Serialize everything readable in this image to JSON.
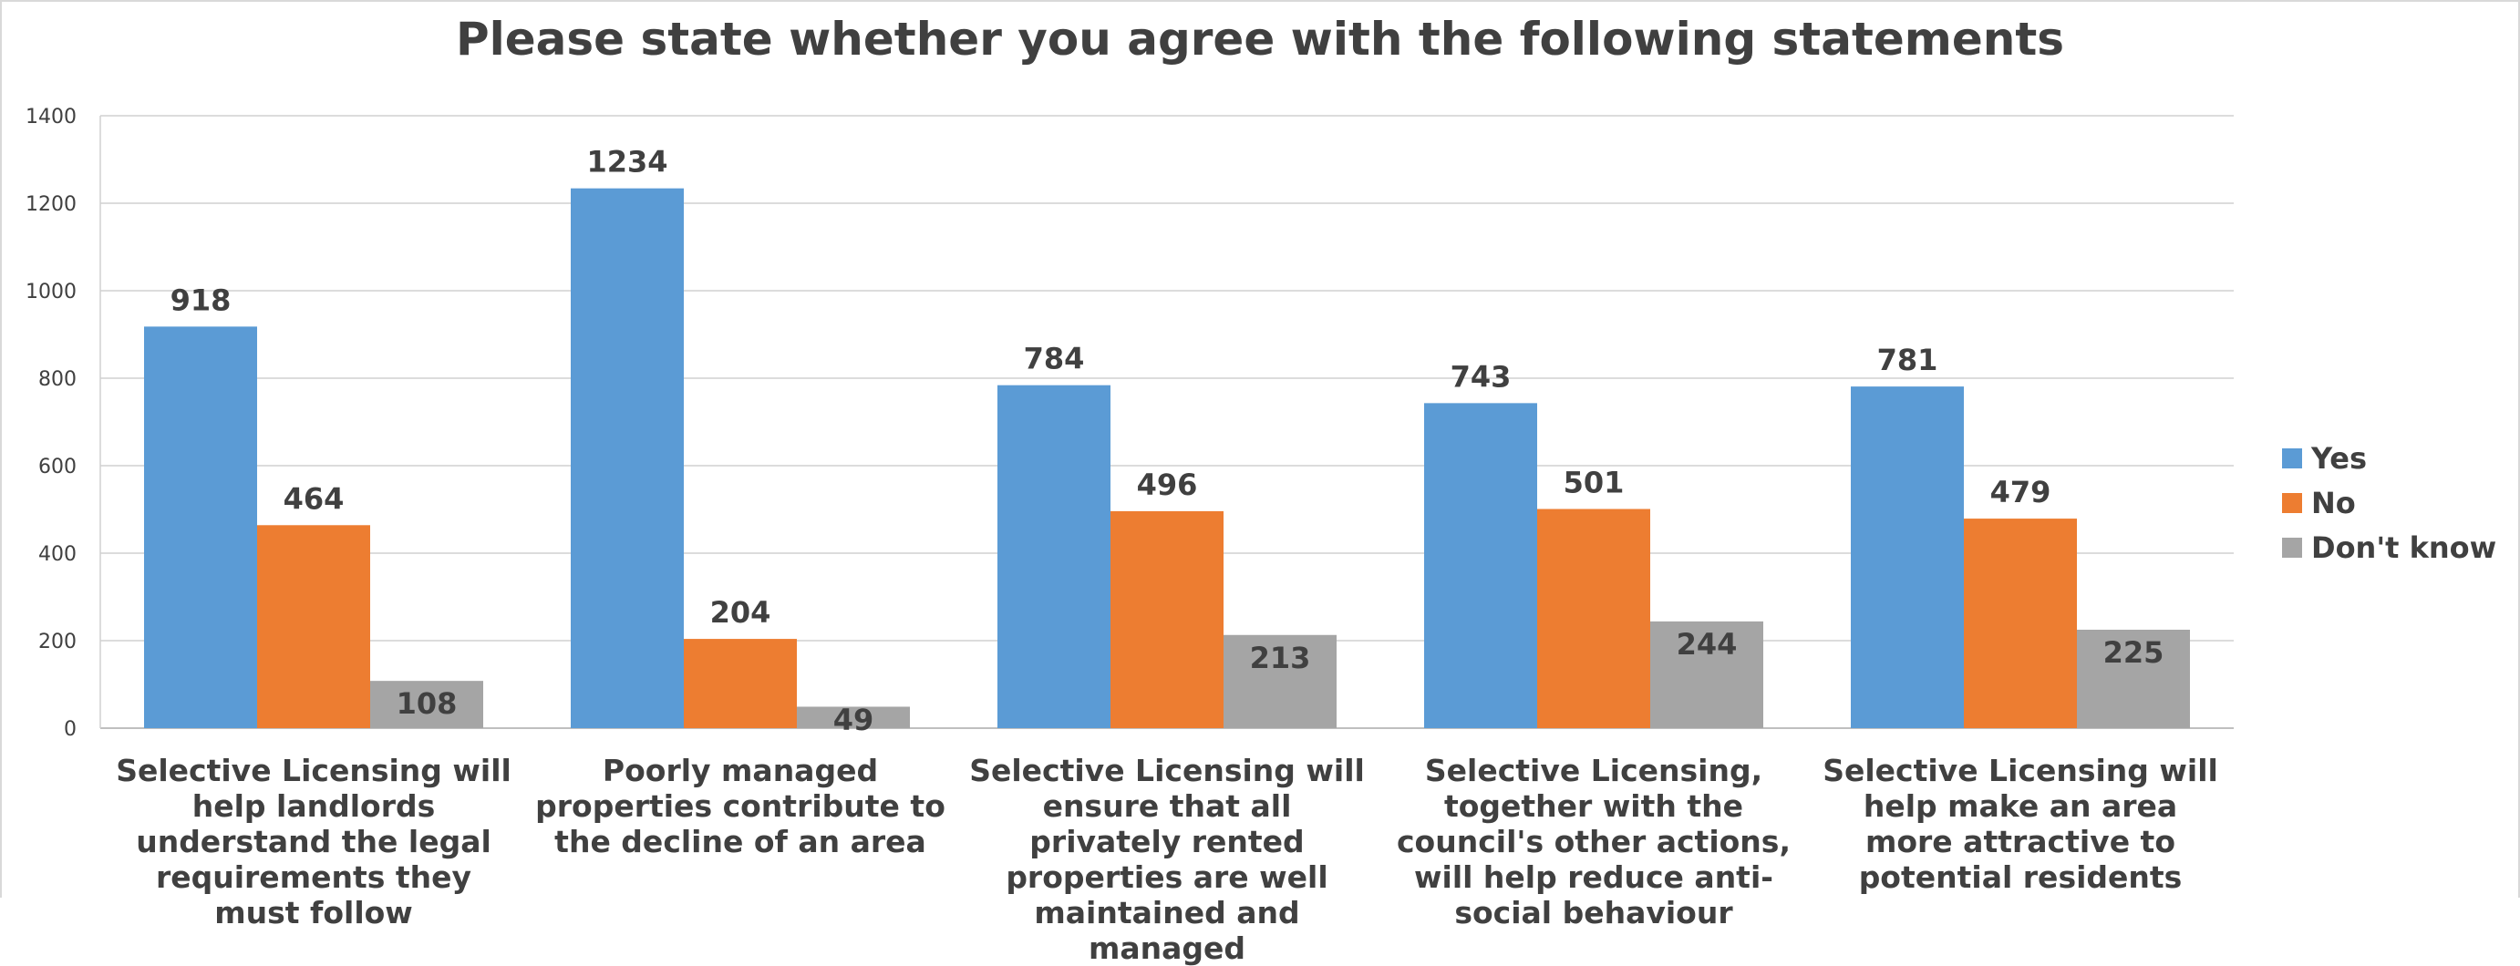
{
  "chart_data": {
    "type": "bar",
    "title": "Please state whether you agree with the following statements",
    "categories": [
      "Selective Licensing will help landlords understand the legal requirements they must follow",
      "Poorly managed properties contribute to the decline of an area",
      "Selective Licensing will ensure that all privately rented properties are well maintained and managed",
      "Selective Licensing, together with the council's other actions, will help reduce anti-social behaviour",
      "Selective Licensing will help make an area more attractive to potential residents"
    ],
    "series": [
      {
        "name": "Yes",
        "color": "#5b9bd5",
        "values": [
          918,
          1234,
          784,
          743,
          781
        ]
      },
      {
        "name": "No",
        "color": "#ed7d31",
        "values": [
          464,
          204,
          496,
          501,
          479
        ]
      },
      {
        "name": "Don't know",
        "color": "#a5a5a5",
        "values": [
          108,
          49,
          213,
          244,
          225
        ]
      }
    ],
    "ylim": [
      0,
      1400
    ],
    "yticks": [
      0,
      200,
      400,
      600,
      800,
      1000,
      1200,
      1400
    ],
    "grid": true,
    "legend": "right"
  }
}
